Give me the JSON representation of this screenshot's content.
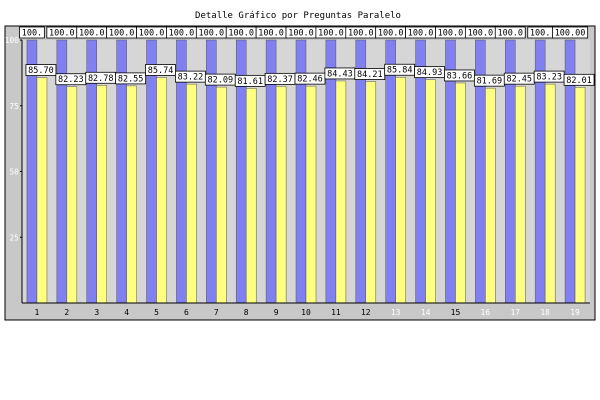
{
  "colors": {
    "plot_background": "#d6d6d6",
    "frame_background": "#c8c8c8",
    "series_blue": "#8080f0",
    "series_yellow": "#ffff80",
    "x_tick_dark": "#000000",
    "x_tick_light": "#ffffff",
    "y_tick": "#ffffff"
  },
  "chart_data": {
    "type": "bar",
    "title": "Detalle Gráfico por Preguntas Paralelo",
    "xlabel": "",
    "ylabel": "",
    "ylim": [
      0,
      100
    ],
    "y_ticks": [
      25,
      50,
      75,
      100
    ],
    "grid": false,
    "legend": "none",
    "categories": [
      "1",
      "2",
      "3",
      "4",
      "5",
      "6",
      "7",
      "8",
      "9",
      "10",
      "11",
      "12",
      "13",
      "14",
      "15",
      "16",
      "17",
      "18",
      "19"
    ],
    "x_tick_colors": [
      "dark",
      "dark",
      "dark",
      "dark",
      "dark",
      "dark",
      "dark",
      "dark",
      "dark",
      "dark",
      "dark",
      "dark",
      "light",
      "light",
      "dark",
      "light",
      "light",
      "light",
      "light"
    ],
    "series": [
      {
        "values": [
          100,
          100,
          100,
          100,
          100,
          100,
          100,
          100,
          100,
          100,
          100,
          100,
          100,
          100,
          100,
          100,
          100,
          100,
          100
        ],
        "labels": [
          "100.",
          "100.0",
          "100.0",
          "100.0",
          "100.0",
          "100.0",
          "100.0",
          "100.0",
          "100.0",
          "100.0",
          "100.0",
          "100.0",
          "100.0",
          "100.0",
          "100.0",
          "100.0",
          "100.0",
          "100.",
          "100.00"
        ]
      },
      {
        "values": [
          85.7,
          82.23,
          82.78,
          82.55,
          85.74,
          83.22,
          82.09,
          81.61,
          82.37,
          82.46,
          84.43,
          84.21,
          85.84,
          84.93,
          83.66,
          81.69,
          82.45,
          83.23,
          82.01
        ],
        "labels": [
          "85.70",
          "82.23",
          "82.78",
          "82.55",
          "85.74",
          "83.22",
          "82.09",
          "81.61",
          "82.37",
          "82.46",
          "84.43",
          "84.21",
          "85.84",
          "84.93",
          "83.66",
          "81.69",
          "82.45",
          "83.23",
          "82.01"
        ]
      }
    ]
  }
}
